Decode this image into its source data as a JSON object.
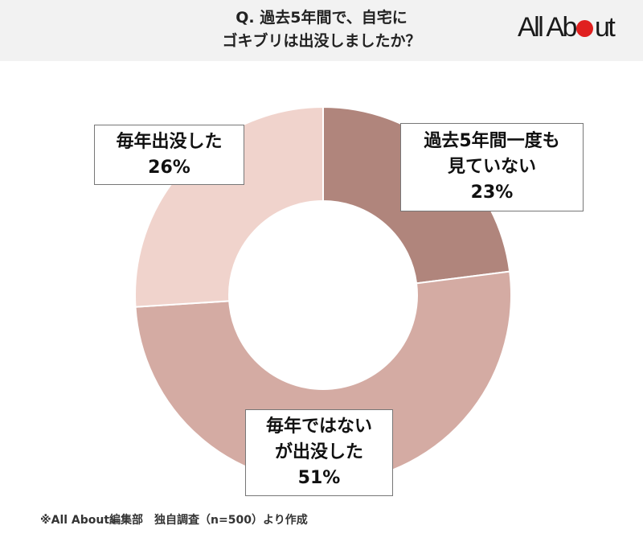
{
  "header": {
    "title_line1": "Q. 過去5年間で、自宅に",
    "title_line2": "ゴキブリは出没しましたか？",
    "logo": {
      "left": "All Ab",
      "right": "ut",
      "dot_color": "#e0201f"
    }
  },
  "chart_data": {
    "type": "pie",
    "subtype": "donut",
    "title": "Q. 過去5年間で、自宅にゴキブリは出没しましたか？",
    "categories": [
      "過去5年間一度も見ていない",
      "毎年ではないが出没した",
      "毎年出没した"
    ],
    "values": [
      23,
      51,
      26
    ],
    "unit": "%",
    "colors": [
      "#B0857C",
      "#D4ABA3",
      "#F0D3CC"
    ],
    "start_angle": "12 o'clock, clockwise",
    "legend": "none (data labels on slices)"
  },
  "labels": [
    {
      "lines": [
        "過去5年間一度も",
        "見ていない"
      ],
      "value": "23%"
    },
    {
      "lines": [
        "毎年ではない",
        "が出没した"
      ],
      "value": "51%"
    },
    {
      "lines": [
        "毎年出没した"
      ],
      "value": "26%"
    }
  ],
  "footer": {
    "source": "※All About編集部　独自調査（n=500）より作成"
  }
}
